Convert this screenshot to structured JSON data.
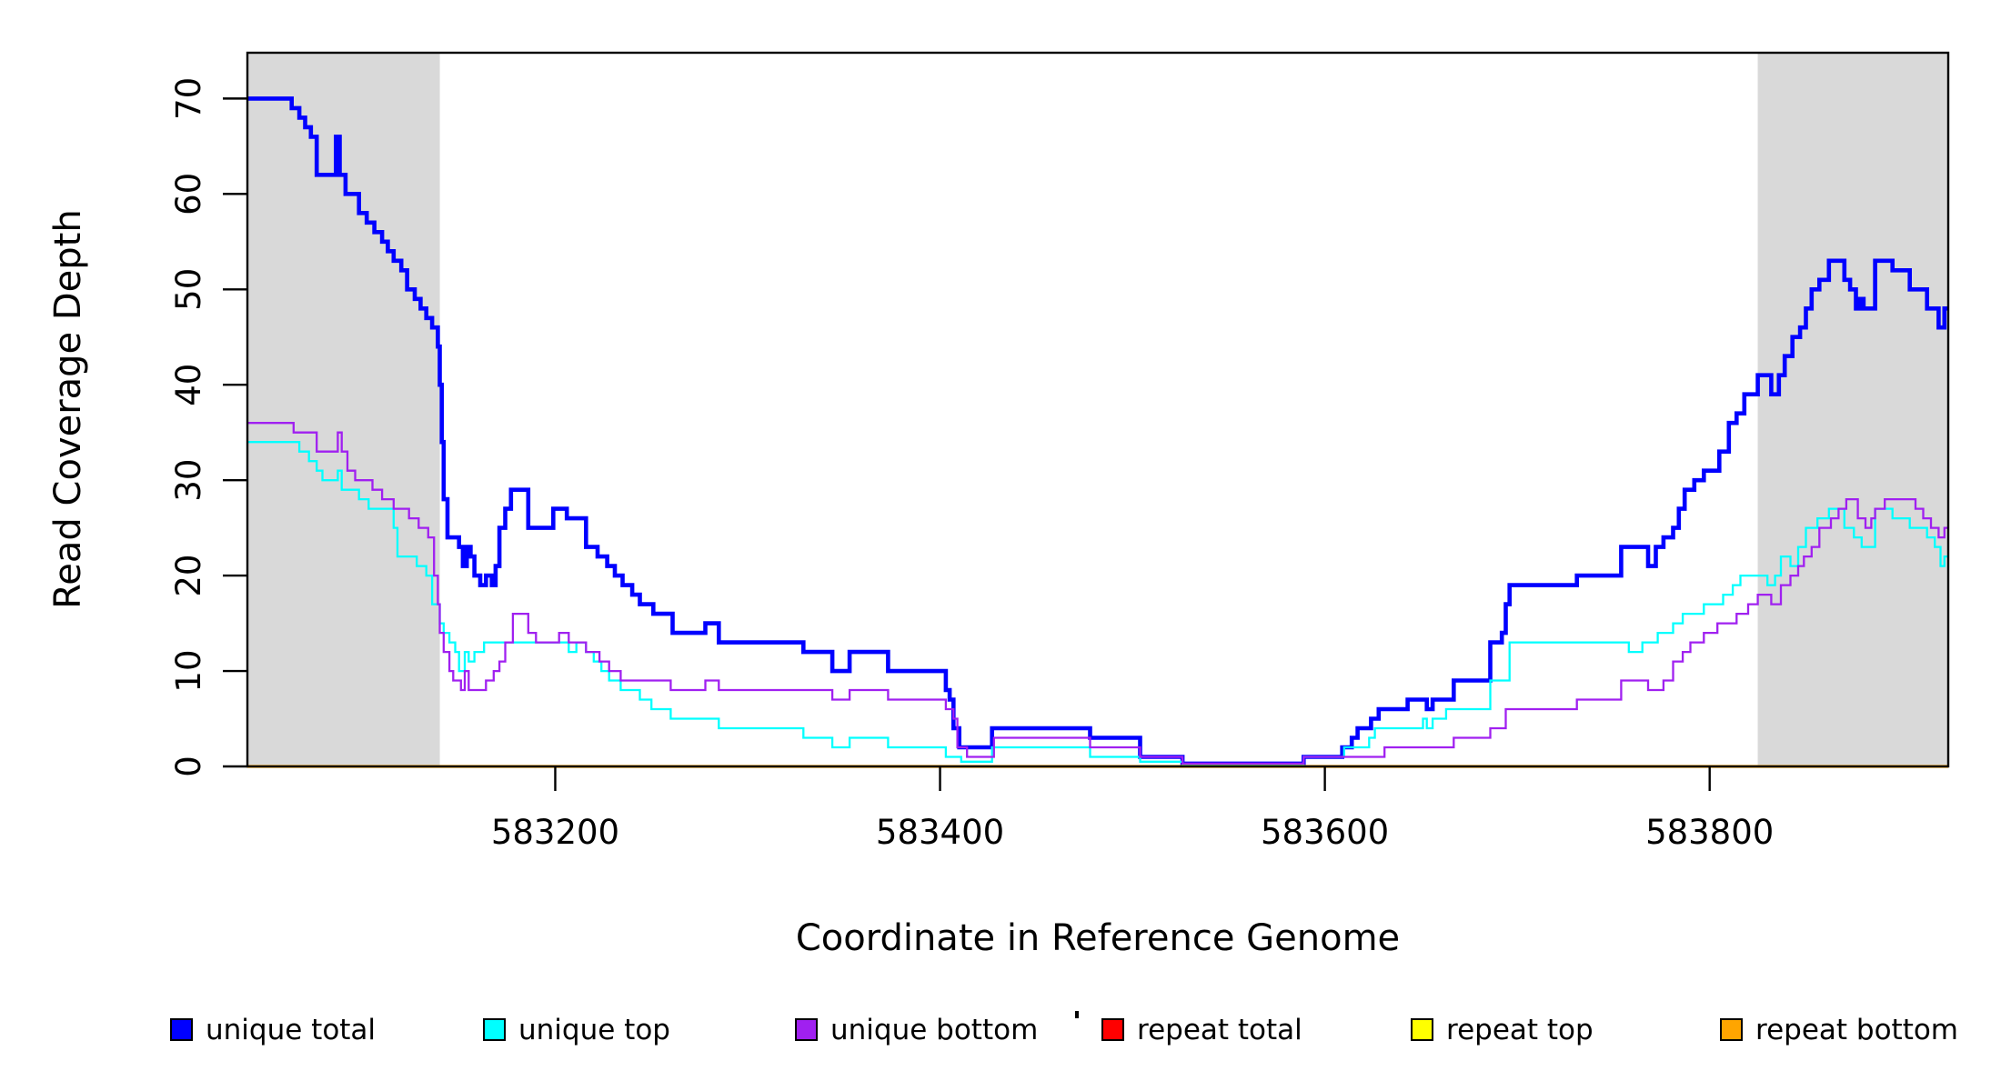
{
  "chart_data": {
    "type": "line",
    "subtype": "step-coverage",
    "title": "",
    "xlabel": "Coordinate in Reference Genome",
    "ylabel": "Read Coverage Depth",
    "x_ticks": [
      583200,
      583400,
      583600,
      583800
    ],
    "y_ticks": [
      0,
      10,
      20,
      30,
      40,
      50,
      60,
      70
    ],
    "xlim": [
      583040,
      583924
    ],
    "ylim": [
      0,
      74.8
    ],
    "grid": false,
    "legend_position": "bottom",
    "background_color": "#ffffff",
    "shade_color": "#d9d9d9",
    "shaded_regions": [
      {
        "x0": 583040,
        "x1": 583140
      },
      {
        "x0": 583825,
        "x1": 583924
      }
    ],
    "series": [
      {
        "name": "unique total",
        "color": "#0000ff",
        "line_width": 4.6,
        "points": [
          [
            583040,
            70
          ],
          [
            583063,
            69
          ],
          [
            583067,
            68
          ],
          [
            583070,
            67
          ],
          [
            583073,
            66
          ],
          [
            583076,
            62
          ],
          [
            583086,
            66
          ],
          [
            583088,
            62
          ],
          [
            583091,
            60
          ],
          [
            583098,
            58
          ],
          [
            583102,
            57
          ],
          [
            583106,
            56
          ],
          [
            583110,
            55
          ],
          [
            583113,
            54
          ],
          [
            583116,
            53
          ],
          [
            583120,
            52
          ],
          [
            583123,
            50
          ],
          [
            583127,
            49
          ],
          [
            583130,
            48
          ],
          [
            583133,
            47
          ],
          [
            583136,
            46
          ],
          [
            583139,
            44
          ],
          [
            583140,
            40
          ],
          [
            583141,
            34
          ],
          [
            583142,
            28
          ],
          [
            583144,
            24
          ],
          [
            583150,
            23
          ],
          [
            583152,
            21
          ],
          [
            583154,
            23
          ],
          [
            583156,
            22
          ],
          [
            583158,
            20
          ],
          [
            583161,
            19
          ],
          [
            583164,
            20
          ],
          [
            583167,
            19
          ],
          [
            583169,
            21
          ],
          [
            583171,
            25
          ],
          [
            583174,
            27
          ],
          [
            583177,
            29
          ],
          [
            583186,
            25
          ],
          [
            583199,
            27
          ],
          [
            583206,
            26
          ],
          [
            583216,
            23
          ],
          [
            583222,
            22
          ],
          [
            583227,
            21
          ],
          [
            583231,
            20
          ],
          [
            583235,
            19
          ],
          [
            583240,
            18
          ],
          [
            583244,
            17
          ],
          [
            583251,
            16
          ],
          [
            583261,
            14
          ],
          [
            583278,
            15
          ],
          [
            583285,
            13
          ],
          [
            583329,
            12
          ],
          [
            583344,
            10
          ],
          [
            583353,
            12
          ],
          [
            583373,
            10
          ],
          [
            583403,
            8
          ],
          [
            583405,
            7
          ],
          [
            583407,
            4
          ],
          [
            583410,
            2
          ],
          [
            583427,
            4
          ],
          [
            583478,
            3
          ],
          [
            583504,
            1
          ],
          [
            583526,
            0.3
          ],
          [
            583589,
            1
          ],
          [
            583609,
            2
          ],
          [
            583614,
            3
          ],
          [
            583617,
            4
          ],
          [
            583624,
            5
          ],
          [
            583628,
            6
          ],
          [
            583643,
            7
          ],
          [
            583653,
            6
          ],
          [
            583656,
            7
          ],
          [
            583667,
            9
          ],
          [
            583686,
            13
          ],
          [
            583692,
            14
          ],
          [
            583694,
            17
          ],
          [
            583696,
            19
          ],
          [
            583731,
            20
          ],
          [
            583754,
            23
          ],
          [
            583768,
            21
          ],
          [
            583772,
            23
          ],
          [
            583776,
            24
          ],
          [
            583781,
            25
          ],
          [
            583784,
            27
          ],
          [
            583787,
            29
          ],
          [
            583792,
            30
          ],
          [
            583797,
            31
          ],
          [
            583805,
            33
          ],
          [
            583810,
            36
          ],
          [
            583814,
            37
          ],
          [
            583818,
            39
          ],
          [
            583825,
            41
          ],
          [
            583832,
            39
          ],
          [
            583836,
            41
          ],
          [
            583839,
            43
          ],
          [
            583843,
            45
          ],
          [
            583847,
            46
          ],
          [
            583850,
            48
          ],
          [
            583853,
            50
          ],
          [
            583857,
            51
          ],
          [
            583862,
            53
          ],
          [
            583870,
            51
          ],
          [
            583873,
            50
          ],
          [
            583876,
            48
          ],
          [
            583878,
            49
          ],
          [
            583880,
            48
          ],
          [
            583886,
            53
          ],
          [
            583895,
            52
          ],
          [
            583904,
            50
          ],
          [
            583913,
            48
          ],
          [
            583919,
            46
          ],
          [
            583922,
            48
          ]
        ]
      },
      {
        "name": "unique top",
        "color": "#00ffff",
        "line_width": 2.3,
        "points": [
          [
            583040,
            34
          ],
          [
            583067,
            33
          ],
          [
            583072,
            32
          ],
          [
            583076,
            31
          ],
          [
            583079,
            30
          ],
          [
            583087,
            31
          ],
          [
            583089,
            29
          ],
          [
            583098,
            28
          ],
          [
            583103,
            27
          ],
          [
            583116,
            25
          ],
          [
            583118,
            22
          ],
          [
            583128,
            21
          ],
          [
            583133,
            20
          ],
          [
            583136,
            17
          ],
          [
            583140,
            15
          ],
          [
            583142,
            14
          ],
          [
            583145,
            13
          ],
          [
            583148,
            12
          ],
          [
            583150,
            10
          ],
          [
            583153,
            12
          ],
          [
            583155,
            11
          ],
          [
            583158,
            12
          ],
          [
            583163,
            13
          ],
          [
            583201,
            13
          ],
          [
            583207,
            12
          ],
          [
            583211,
            13
          ],
          [
            583216,
            12
          ],
          [
            583220,
            11
          ],
          [
            583224,
            10
          ],
          [
            583228,
            9
          ],
          [
            583234,
            8
          ],
          [
            583244,
            7
          ],
          [
            583250,
            6
          ],
          [
            583260,
            5
          ],
          [
            583285,
            4
          ],
          [
            583329,
            3
          ],
          [
            583344,
            2
          ],
          [
            583353,
            3
          ],
          [
            583373,
            2
          ],
          [
            583403,
            1
          ],
          [
            583411,
            0.5
          ],
          [
            583427,
            2
          ],
          [
            583478,
            1
          ],
          [
            583504,
            0.5
          ],
          [
            583526,
            0.1
          ],
          [
            583589,
            1
          ],
          [
            583610,
            2
          ],
          [
            583623,
            3
          ],
          [
            583626,
            4
          ],
          [
            583651,
            5
          ],
          [
            583653,
            4
          ],
          [
            583656,
            5
          ],
          [
            583663,
            6
          ],
          [
            583686,
            9
          ],
          [
            583696,
            13
          ],
          [
            583758,
            12
          ],
          [
            583765,
            13
          ],
          [
            583773,
            14
          ],
          [
            583781,
            15
          ],
          [
            583786,
            16
          ],
          [
            583797,
            17
          ],
          [
            583807,
            18
          ],
          [
            583812,
            19
          ],
          [
            583816,
            20
          ],
          [
            583830,
            19
          ],
          [
            583834,
            20
          ],
          [
            583837,
            22
          ],
          [
            583842,
            21
          ],
          [
            583846,
            23
          ],
          [
            583850,
            25
          ],
          [
            583856,
            26
          ],
          [
            583862,
            27
          ],
          [
            583870,
            25
          ],
          [
            583875,
            24
          ],
          [
            583879,
            23
          ],
          [
            583886,
            27
          ],
          [
            583895,
            26
          ],
          [
            583904,
            25
          ],
          [
            583913,
            24
          ],
          [
            583917,
            23
          ],
          [
            583920,
            21
          ],
          [
            583922,
            22
          ]
        ]
      },
      {
        "name": "unique bottom",
        "color": "#a020f0",
        "line_width": 2.3,
        "points": [
          [
            583040,
            36
          ],
          [
            583064,
            35
          ],
          [
            583076,
            33
          ],
          [
            583087,
            35
          ],
          [
            583089,
            33
          ],
          [
            583092,
            31
          ],
          [
            583096,
            30
          ],
          [
            583105,
            29
          ],
          [
            583110,
            28
          ],
          [
            583116,
            27
          ],
          [
            583124,
            26
          ],
          [
            583129,
            25
          ],
          [
            583134,
            24
          ],
          [
            583137,
            20
          ],
          [
            583139,
            17
          ],
          [
            583140,
            14
          ],
          [
            583142,
            12
          ],
          [
            583145,
            10
          ],
          [
            583147,
            9
          ],
          [
            583151,
            8
          ],
          [
            583153,
            10
          ],
          [
            583155,
            8
          ],
          [
            583164,
            9
          ],
          [
            583168,
            10
          ],
          [
            583171,
            11
          ],
          [
            583174,
            13
          ],
          [
            583178,
            16
          ],
          [
            583186,
            14
          ],
          [
            583190,
            13
          ],
          [
            583202,
            14
          ],
          [
            583207,
            13
          ],
          [
            583216,
            12
          ],
          [
            583223,
            11
          ],
          [
            583228,
            10
          ],
          [
            583234,
            9
          ],
          [
            583260,
            8
          ],
          [
            583278,
            9
          ],
          [
            583285,
            8
          ],
          [
            583344,
            7
          ],
          [
            583353,
            8
          ],
          [
            583373,
            7
          ],
          [
            583403,
            6
          ],
          [
            583407,
            5
          ],
          [
            583409,
            2
          ],
          [
            583414,
            1
          ],
          [
            583428,
            3
          ],
          [
            583478,
            2
          ],
          [
            583504,
            1
          ],
          [
            583526,
            0.3
          ],
          [
            583589,
            1
          ],
          [
            583631,
            2
          ],
          [
            583667,
            3
          ],
          [
            583686,
            4
          ],
          [
            583694,
            6
          ],
          [
            583731,
            7
          ],
          [
            583754,
            9
          ],
          [
            583768,
            8
          ],
          [
            583776,
            9
          ],
          [
            583781,
            11
          ],
          [
            583786,
            12
          ],
          [
            583790,
            13
          ],
          [
            583797,
            14
          ],
          [
            583804,
            15
          ],
          [
            583814,
            16
          ],
          [
            583820,
            17
          ],
          [
            583825,
            18
          ],
          [
            583832,
            17
          ],
          [
            583837,
            19
          ],
          [
            583842,
            20
          ],
          [
            583846,
            21
          ],
          [
            583849,
            22
          ],
          [
            583853,
            23
          ],
          [
            583857,
            25
          ],
          [
            583863,
            26
          ],
          [
            583867,
            27
          ],
          [
            583871,
            28
          ],
          [
            583877,
            26
          ],
          [
            583881,
            25
          ],
          [
            583884,
            26
          ],
          [
            583886,
            27
          ],
          [
            583891,
            28
          ],
          [
            583907,
            27
          ],
          [
            583911,
            26
          ],
          [
            583915,
            25
          ],
          [
            583919,
            24
          ],
          [
            583922,
            25
          ]
        ]
      },
      {
        "name": "repeat total",
        "color": "#ff0000",
        "line_width": 2.3,
        "points": [
          [
            583040,
            0
          ]
        ]
      },
      {
        "name": "repeat top",
        "color": "#ffff00",
        "line_width": 2.3,
        "points": [
          [
            583040,
            0
          ]
        ]
      },
      {
        "name": "repeat bottom",
        "color": "#ffa500",
        "line_width": 3.2,
        "points": [
          [
            583040,
            0
          ]
        ]
      }
    ]
  },
  "legend": {
    "items": [
      {
        "label": "unique total",
        "color": "#0000ff"
      },
      {
        "label": "unique top",
        "color": "#00ffff"
      },
      {
        "label": "unique bottom",
        "color": "#a020f0"
      },
      {
        "label": "repeat total",
        "color": "#ff0000"
      },
      {
        "label": "repeat top",
        "color": "#ffff00"
      },
      {
        "label": "repeat bottom",
        "color": "#ffa500"
      }
    ]
  }
}
